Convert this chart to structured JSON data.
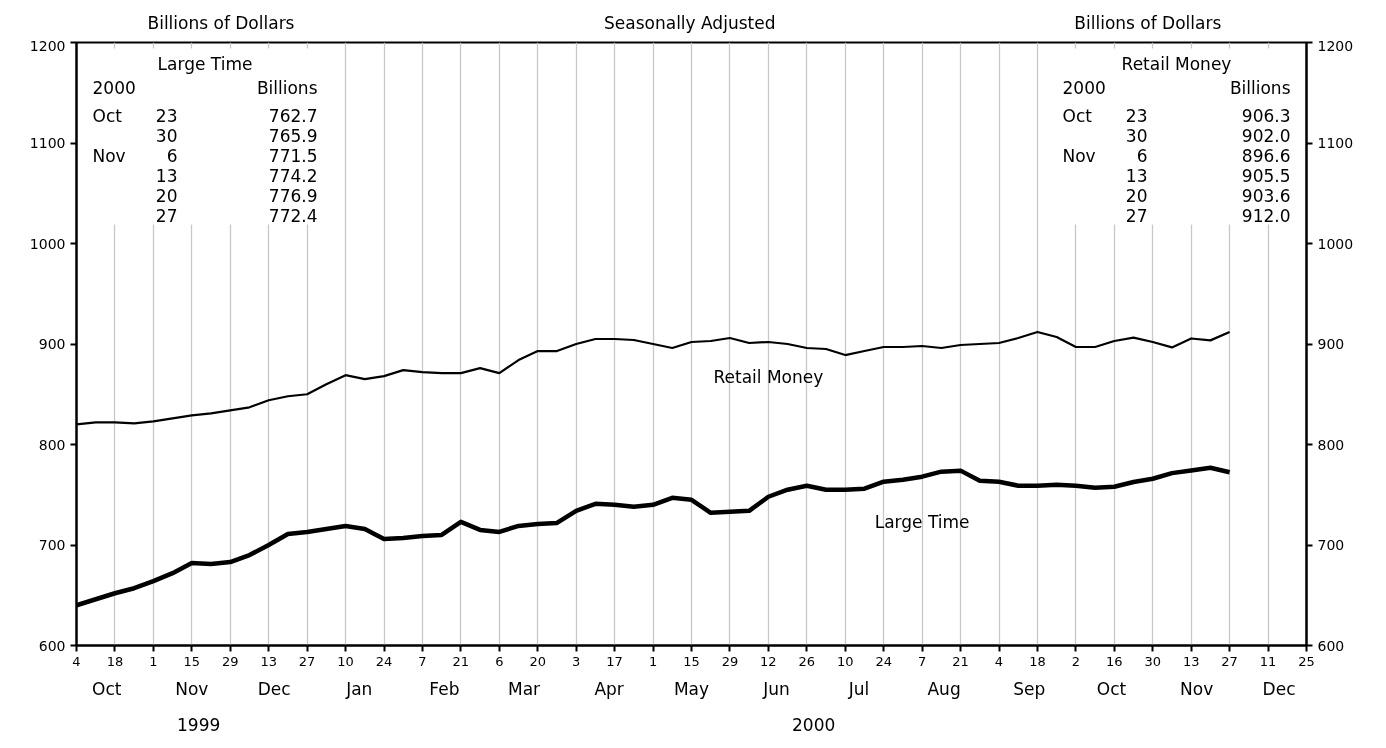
{
  "chart_data": {
    "type": "line",
    "title": "Seasonally Adjusted",
    "ylabel": "Billions of Dollars",
    "y2label": "Billions of Dollars",
    "xlim": [
      "1999-10-04",
      "2000-12-25"
    ],
    "xticks": [
      {
        "value": "1999-10-04",
        "label": "4"
      },
      {
        "value": "1999-10-18",
        "label": "18"
      },
      {
        "value": "1999-11-01",
        "label": "1"
      },
      {
        "value": "1999-11-15",
        "label": "15"
      },
      {
        "value": "1999-11-29",
        "label": "29"
      },
      {
        "value": "1999-12-13",
        "label": "13"
      },
      {
        "value": "1999-12-27",
        "label": "27"
      },
      {
        "value": "2000-01-10",
        "label": "10"
      },
      {
        "value": "2000-01-24",
        "label": "24"
      },
      {
        "value": "2000-02-07",
        "label": "7"
      },
      {
        "value": "2000-02-21",
        "label": "21"
      },
      {
        "value": "2000-03-06",
        "label": "6"
      },
      {
        "value": "2000-03-20",
        "label": "20"
      },
      {
        "value": "2000-04-03",
        "label": "3"
      },
      {
        "value": "2000-04-17",
        "label": "17"
      },
      {
        "value": "2000-05-01",
        "label": "1"
      },
      {
        "value": "2000-05-15",
        "label": "15"
      },
      {
        "value": "2000-05-29",
        "label": "29"
      },
      {
        "value": "2000-06-12",
        "label": "12"
      },
      {
        "value": "2000-06-26",
        "label": "26"
      },
      {
        "value": "2000-07-10",
        "label": "10"
      },
      {
        "value": "2000-07-24",
        "label": "24"
      },
      {
        "value": "2000-08-07",
        "label": "7"
      },
      {
        "value": "2000-08-21",
        "label": "21"
      },
      {
        "value": "2000-09-04",
        "label": "4"
      },
      {
        "value": "2000-09-18",
        "label": "18"
      },
      {
        "value": "2000-10-02",
        "label": "2"
      },
      {
        "value": "2000-10-16",
        "label": "16"
      },
      {
        "value": "2000-10-30",
        "label": "30"
      },
      {
        "value": "2000-11-13",
        "label": "13"
      },
      {
        "value": "2000-11-27",
        "label": "27"
      },
      {
        "value": "2000-12-11",
        "label": "11"
      },
      {
        "value": "2000-12-25",
        "label": "25"
      }
    ],
    "x2lim": [
      "1999-10-04",
      "2000-12-25"
    ],
    "x2ticks": [
      {
        "value": "1999-10-15",
        "label": "Oct"
      },
      {
        "value": "1999-11-15",
        "label": "Nov"
      },
      {
        "value": "1999-12-15",
        "label": "Dec"
      },
      {
        "value": "2000-01-15",
        "label": "Jan"
      },
      {
        "value": "2000-02-15",
        "label": "Feb"
      },
      {
        "value": "2000-03-15",
        "label": "Mar"
      },
      {
        "value": "2000-04-15",
        "label": "Apr"
      },
      {
        "value": "2000-05-15",
        "label": "May"
      },
      {
        "value": "2000-06-15",
        "label": "Jun"
      },
      {
        "value": "2000-07-15",
        "label": "Jul"
      },
      {
        "value": "2000-08-15",
        "label": "Aug"
      },
      {
        "value": "2000-09-15",
        "label": "Sep"
      },
      {
        "value": "2000-10-15",
        "label": "Oct"
      },
      {
        "value": "2000-11-15",
        "label": "Nov"
      },
      {
        "value": "2000-12-15",
        "label": "Dec"
      }
    ],
    "ylim": [
      600,
      1200
    ],
    "yticks": [
      600,
      700,
      800,
      900,
      1000,
      1100,
      1200
    ],
    "y2lim": [
      600,
      1200
    ],
    "y2ticks": [
      600,
      700,
      800,
      900,
      1000,
      1100,
      1200
    ],
    "grid": "x",
    "x": [
      "1999-10-04",
      "1999-10-11",
      "1999-10-18",
      "1999-10-25",
      "1999-11-01",
      "1999-11-08",
      "1999-11-15",
      "1999-11-22",
      "1999-11-29",
      "1999-12-06",
      "1999-12-13",
      "1999-12-20",
      "1999-12-27",
      "2000-01-03",
      "2000-01-10",
      "2000-01-17",
      "2000-01-24",
      "2000-01-31",
      "2000-02-07",
      "2000-02-14",
      "2000-02-21",
      "2000-02-28",
      "2000-03-06",
      "2000-03-13",
      "2000-03-20",
      "2000-03-27",
      "2000-04-03",
      "2000-04-10",
      "2000-04-17",
      "2000-04-24",
      "2000-05-01",
      "2000-05-08",
      "2000-05-15",
      "2000-05-22",
      "2000-05-29",
      "2000-06-05",
      "2000-06-12",
      "2000-06-19",
      "2000-06-26",
      "2000-07-03",
      "2000-07-10",
      "2000-07-17",
      "2000-07-24",
      "2000-07-31",
      "2000-08-07",
      "2000-08-14",
      "2000-08-21",
      "2000-08-28",
      "2000-09-04",
      "2000-09-11",
      "2000-09-18",
      "2000-09-25",
      "2000-10-02",
      "2000-10-09",
      "2000-10-16",
      "2000-10-23",
      "2000-10-30",
      "2000-11-06",
      "2000-11-13",
      "2000-11-20",
      "2000-11-27"
    ],
    "series": [
      {
        "name": "Large Time",
        "color": "#000000",
        "values": [
          640,
          646,
          652,
          657,
          664,
          672,
          682,
          681,
          683,
          690,
          700,
          711,
          713,
          716,
          719,
          716,
          706,
          707,
          709,
          710,
          723,
          715,
          713,
          719,
          721,
          722,
          734,
          741,
          740,
          738,
          740,
          747,
          745,
          732,
          733,
          734,
          748,
          755,
          759,
          755,
          755,
          756,
          763,
          765,
          768,
          773,
          774,
          764,
          763,
          759,
          759,
          760,
          759,
          757,
          758,
          762.7,
          765.9,
          771.5,
          774.2,
          776.9,
          772.4
        ]
      },
      {
        "name": "Retail Money",
        "color": "#000000",
        "values": [
          820,
          822,
          822,
          821,
          823,
          826,
          829,
          831,
          834,
          837,
          844,
          848,
          850,
          860,
          869,
          865,
          868,
          874,
          872,
          871,
          871,
          876,
          871,
          884,
          893,
          893,
          900,
          905,
          905,
          904,
          900,
          896,
          902,
          903,
          906,
          901,
          902,
          900,
          896,
          895,
          889,
          893,
          897,
          897,
          898,
          896,
          899,
          900,
          901,
          906,
          912,
          907,
          897,
          897,
          903,
          906.3,
          902.0,
          896.6,
          905.5,
          903.6,
          912.0
        ]
      }
    ],
    "annotations": [
      "Large Time",
      "2000\t\tBillions",
      "Oct\t23\t762.7",
      "\t30\t765.9",
      "Nov\t6\t771.5",
      "\t13\t774.2",
      "\t20\t776.9",
      "\t27\t772.4",
      "Retail Money",
      "2000\t\tBillions",
      "Oct\t23\t906.3",
      "\t30\t902.0",
      "Nov\t6\t896.6",
      "\t13\t905.5",
      "\t20\t903.6",
      "\t27\t912.0",
      "1999",
      "2000"
    ]
  }
}
